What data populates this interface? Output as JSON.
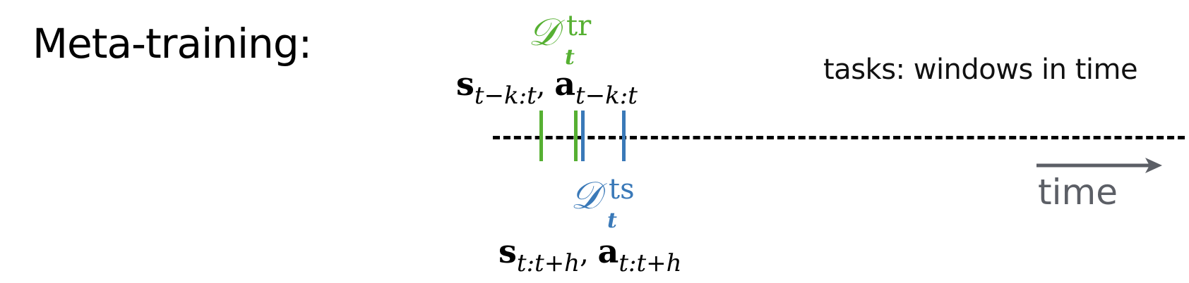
{
  "heading": "Meta-training:",
  "caption": "tasks: windows in time",
  "train_set": {
    "symbol": "𝒟",
    "superscript": "tr",
    "subscript": "t",
    "color": "#56b032",
    "states": "s",
    "states_range": "t−k:t",
    "actions": "a",
    "actions_range": "t−k:t"
  },
  "test_set": {
    "symbol": "𝒟",
    "superscript": "ts",
    "subscript": "t",
    "color": "#3a79b8",
    "states": "s",
    "states_range": "t:t+h",
    "actions": "a",
    "actions_range": "t:t+h"
  },
  "time_axis": {
    "label": "time",
    "arrow_color": "#5c5f66",
    "line_style": "dashed"
  }
}
